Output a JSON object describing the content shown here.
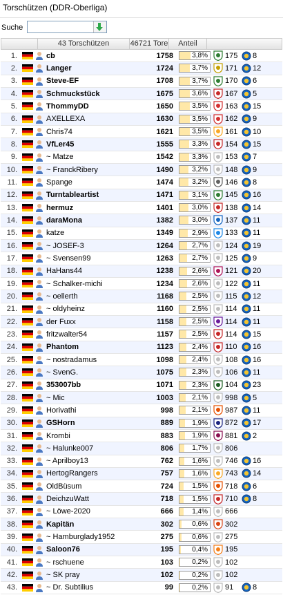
{
  "title": "Torschützen (DDR-Oberliga)",
  "search": {
    "label": "Suche",
    "value": "",
    "button_icon": "arrow-down-icon",
    "button_color": "#2ea84a"
  },
  "header": {
    "count": "43 Torschützen",
    "total": "46721 Tore",
    "share": "Anteil"
  },
  "colors": {
    "flag_black": "#000000",
    "flag_red": "#dd0000",
    "flag_gold": "#ffce00",
    "alt_row": "#f0f4ff",
    "bar_fill": "#ffe8a8"
  },
  "rows": [
    {
      "rank": "1.",
      "name": "cb",
      "bold": true,
      "tore": "1758",
      "share_pct": 3.8,
      "share": "3,8%",
      "club": "175",
      "medal": "8",
      "club_color": "#2f7d32"
    },
    {
      "rank": "2.",
      "name": "Langer",
      "bold": true,
      "tore": "1724",
      "share_pct": 3.7,
      "share": "3,7%",
      "club": "171",
      "medal": "12",
      "club_color": "#c4a000"
    },
    {
      "rank": "3.",
      "name": "Steve-EF",
      "bold": true,
      "tore": "1708",
      "share_pct": 3.7,
      "share": "3,7%",
      "club": "170",
      "medal": "6",
      "club_color": "#2e7d32"
    },
    {
      "rank": "4.",
      "name": "Schmuckstück",
      "bold": true,
      "tore": "1675",
      "share_pct": 3.6,
      "share": "3,6%",
      "club": "167",
      "medal": "5",
      "club_color": "#c62828"
    },
    {
      "rank": "5.",
      "name": "ThommyDD",
      "bold": true,
      "tore": "1650",
      "share_pct": 3.5,
      "share": "3,5%",
      "club": "163",
      "medal": "15",
      "club_color": "#d32f2f"
    },
    {
      "rank": "6.",
      "name": "AXELLEXA",
      "bold": false,
      "tore": "1630",
      "share_pct": 3.5,
      "share": "3,5%",
      "club": "162",
      "medal": "9",
      "club_color": "#d32f2f"
    },
    {
      "rank": "7.",
      "name": "Chris74",
      "bold": false,
      "tore": "1621",
      "share_pct": 3.5,
      "share": "3,5%",
      "club": "161",
      "medal": "10",
      "club_color": "#f9a825"
    },
    {
      "rank": "8.",
      "name": "VfLer45",
      "bold": true,
      "tore": "1555",
      "share_pct": 3.3,
      "share": "3,3%",
      "club": "154",
      "medal": "15",
      "club_color": "#c62828"
    },
    {
      "rank": "9.",
      "name": "~ Matze",
      "bold": false,
      "tore": "1542",
      "share_pct": 3.3,
      "share": "3,3%",
      "club": "153",
      "medal": "7",
      "club_color": "#bdbdbd"
    },
    {
      "rank": "10.",
      "name": "~ FranckRibery",
      "bold": false,
      "tore": "1490",
      "share_pct": 3.2,
      "share": "3,2%",
      "club": "148",
      "medal": "9",
      "club_color": "#bdbdbd"
    },
    {
      "rank": "11.",
      "name": "Spange",
      "bold": false,
      "tore": "1474",
      "share_pct": 3.2,
      "share": "3,2%",
      "club": "146",
      "medal": "8",
      "club_color": "#616161"
    },
    {
      "rank": "12.",
      "name": "Turntableartist",
      "bold": true,
      "tore": "1471",
      "share_pct": 3.1,
      "share": "3,1%",
      "club": "145",
      "medal": "16",
      "club_color": "#2e7d32"
    },
    {
      "rank": "13.",
      "name": "hermuz",
      "bold": true,
      "tore": "1401",
      "share_pct": 3.0,
      "share": "3,0%",
      "club": "138",
      "medal": "14",
      "club_color": "#c62828"
    },
    {
      "rank": "14.",
      "name": "daraMona",
      "bold": true,
      "tore": "1382",
      "share_pct": 3.0,
      "share": "3,0%",
      "club": "137",
      "medal": "11",
      "club_color": "#1565c0"
    },
    {
      "rank": "15.",
      "name": "katze",
      "bold": false,
      "tore": "1349",
      "share_pct": 2.9,
      "share": "2,9%",
      "club": "133",
      "medal": "11",
      "club_color": "#1e88e5"
    },
    {
      "rank": "16.",
      "name": "~ JOSEF-3",
      "bold": false,
      "tore": "1264",
      "share_pct": 2.7,
      "share": "2,7%",
      "club": "124",
      "medal": "19",
      "club_color": "#bdbdbd"
    },
    {
      "rank": "17.",
      "name": "~ Svensen99",
      "bold": false,
      "tore": "1263",
      "share_pct": 2.7,
      "share": "2,7%",
      "club": "125",
      "medal": "9",
      "club_color": "#bdbdbd"
    },
    {
      "rank": "18.",
      "name": "HaHans44",
      "bold": false,
      "tore": "1238",
      "share_pct": 2.6,
      "share": "2,6%",
      "club": "121",
      "medal": "20",
      "club_color": "#ad1457"
    },
    {
      "rank": "19.",
      "name": "~ Schalker-michi",
      "bold": false,
      "tore": "1234",
      "share_pct": 2.6,
      "share": "2,6%",
      "club": "122",
      "medal": "11",
      "club_color": "#bdbdbd"
    },
    {
      "rank": "20.",
      "name": "~ oellerth",
      "bold": false,
      "tore": "1168",
      "share_pct": 2.5,
      "share": "2,5%",
      "club": "115",
      "medal": "12",
      "club_color": "#bdbdbd"
    },
    {
      "rank": "21.",
      "name": "~ oldyheinz",
      "bold": false,
      "tore": "1160",
      "share_pct": 2.5,
      "share": "2,5%",
      "club": "114",
      "medal": "11",
      "club_color": "#bdbdbd"
    },
    {
      "rank": "22.",
      "name": "der Fuxx",
      "bold": false,
      "tore": "1158",
      "share_pct": 2.5,
      "share": "2,5%",
      "club": "114",
      "medal": "11",
      "club_color": "#6a1b9a"
    },
    {
      "rank": "23.",
      "name": "fritzwalter54",
      "bold": false,
      "tore": "1157",
      "share_pct": 2.5,
      "share": "2,5%",
      "club": "114",
      "medal": "15",
      "club_color": "#c62828"
    },
    {
      "rank": "24.",
      "name": "Phantom",
      "bold": true,
      "tore": "1123",
      "share_pct": 2.4,
      "share": "2,4%",
      "club": "110",
      "medal": "16",
      "club_color": "#c62828"
    },
    {
      "rank": "25.",
      "name": "~ nostradamus",
      "bold": false,
      "tore": "1098",
      "share_pct": 2.4,
      "share": "2,4%",
      "club": "108",
      "medal": "16",
      "club_color": "#bdbdbd"
    },
    {
      "rank": "26.",
      "name": "~ SvenG.",
      "bold": false,
      "tore": "1075",
      "share_pct": 2.3,
      "share": "2,3%",
      "club": "106",
      "medal": "11",
      "club_color": "#bdbdbd"
    },
    {
      "rank": "27.",
      "name": "353007bb",
      "bold": true,
      "tore": "1071",
      "share_pct": 2.3,
      "share": "2,3%",
      "club": "104",
      "medal": "23",
      "club_color": "#1b5e20"
    },
    {
      "rank": "28.",
      "name": "~ Mic",
      "bold": false,
      "tore": "1003",
      "share_pct": 2.1,
      "share": "2,1%",
      "club": "998",
      "medal": "5",
      "club_color": "#bdbdbd"
    },
    {
      "rank": "29.",
      "name": "Horivathi",
      "bold": false,
      "tore": "998",
      "share_pct": 2.1,
      "share": "2,1%",
      "club": "987",
      "medal": "11",
      "club_color": "#e65100"
    },
    {
      "rank": "30.",
      "name": "GSHorn",
      "bold": true,
      "tore": "889",
      "share_pct": 1.9,
      "share": "1,9%",
      "club": "872",
      "medal": "17",
      "club_color": "#1a237e"
    },
    {
      "rank": "31.",
      "name": "Krombi",
      "bold": false,
      "tore": "883",
      "share_pct": 1.9,
      "share": "1,9%",
      "club": "881",
      "medal": "2",
      "club_color": "#880e4f"
    },
    {
      "rank": "32.",
      "name": "~ Halunke007",
      "bold": false,
      "tore": "806",
      "share_pct": 1.7,
      "share": "1,7%",
      "club": "806",
      "medal": "",
      "club_color": "#bdbdbd"
    },
    {
      "rank": "33.",
      "name": "~ Aprilboy13",
      "bold": false,
      "tore": "762",
      "share_pct": 1.6,
      "share": "1,6%",
      "club": "746",
      "medal": "16",
      "club_color": "#bdbdbd"
    },
    {
      "rank": "34.",
      "name": "HertogRangers",
      "bold": false,
      "tore": "757",
      "share_pct": 1.6,
      "share": "1,6%",
      "club": "743",
      "medal": "14",
      "club_color": "#f9a825"
    },
    {
      "rank": "35.",
      "name": "OldBüsum",
      "bold": false,
      "tore": "724",
      "share_pct": 1.5,
      "share": "1,5%",
      "club": "718",
      "medal": "6",
      "club_color": "#e65100"
    },
    {
      "rank": "36.",
      "name": "DeichzuWatt",
      "bold": false,
      "tore": "718",
      "share_pct": 1.5,
      "share": "1,5%",
      "club": "710",
      "medal": "8",
      "club_color": "#c62828"
    },
    {
      "rank": "37.",
      "name": "~ Löwe-2020",
      "bold": false,
      "tore": "666",
      "share_pct": 1.4,
      "share": "1,4%",
      "club": "666",
      "medal": "",
      "club_color": "#bdbdbd"
    },
    {
      "rank": "38.",
      "name": "Kapitän",
      "bold": true,
      "tore": "302",
      "share_pct": 0.6,
      "share": "0,6%",
      "club": "302",
      "medal": "",
      "club_color": "#d84315"
    },
    {
      "rank": "39.",
      "name": "~ Hamburglady1952",
      "bold": false,
      "tore": "275",
      "share_pct": 0.6,
      "share": "0,6%",
      "club": "275",
      "medal": "",
      "club_color": "#bdbdbd"
    },
    {
      "rank": "40.",
      "name": "Saloon76",
      "bold": true,
      "tore": "195",
      "share_pct": 0.4,
      "share": "0,4%",
      "club": "195",
      "medal": "",
      "club_color": "#f57f17"
    },
    {
      "rank": "41.",
      "name": "~ rschuene",
      "bold": false,
      "tore": "103",
      "share_pct": 0.2,
      "share": "0,2%",
      "club": "102",
      "medal": "",
      "club_color": "#bdbdbd"
    },
    {
      "rank": "42.",
      "name": "~ SK pray",
      "bold": false,
      "tore": "102",
      "share_pct": 0.2,
      "share": "0,2%",
      "club": "102",
      "medal": "",
      "club_color": "#bdbdbd"
    },
    {
      "rank": "43.",
      "name": "~ Dr. Subtilius",
      "bold": false,
      "tore": "99",
      "share_pct": 0.2,
      "share": "0,2%",
      "club": "91",
      "medal": "8",
      "club_color": "#bdbdbd"
    }
  ]
}
